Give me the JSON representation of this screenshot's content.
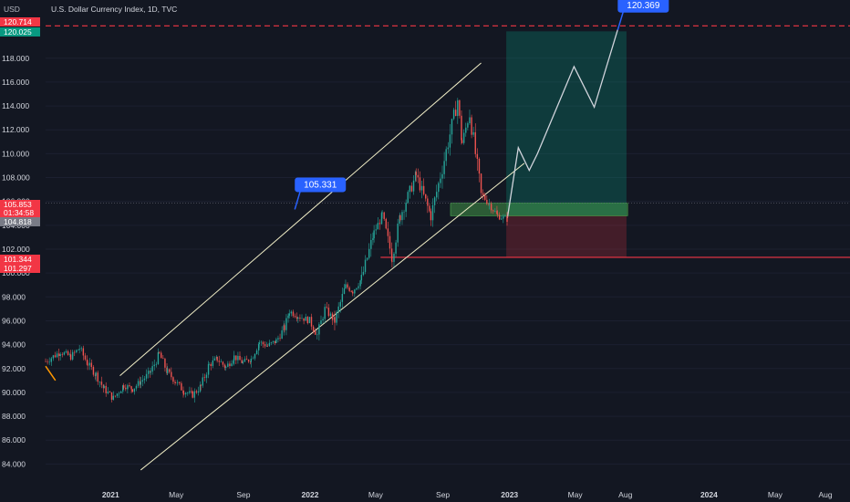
{
  "header": {
    "unit": "USD",
    "title": "U.S. Dollar Currency Index, 1D, TVC"
  },
  "chart_data": {
    "type": "candlestick",
    "x_axis": {
      "labels": [
        {
          "label": "2021",
          "date": "2021-01-01",
          "bold": true
        },
        {
          "label": "May",
          "date": "2021-05-01",
          "bold": false
        },
        {
          "label": "Sep",
          "date": "2021-09-01",
          "bold": false
        },
        {
          "label": "2022",
          "date": "2022-01-01",
          "bold": true
        },
        {
          "label": "May",
          "date": "2022-05-01",
          "bold": false
        },
        {
          "label": "Sep",
          "date": "2022-09-01",
          "bold": false
        },
        {
          "label": "2023",
          "date": "2023-01-01",
          "bold": true
        },
        {
          "label": "May",
          "date": "2023-05-01",
          "bold": false
        },
        {
          "label": "Aug",
          "date": "2023-08-01",
          "bold": false
        },
        {
          "label": "2024",
          "date": "2024-01-01",
          "bold": true
        },
        {
          "label": "May",
          "date": "2024-05-01",
          "bold": false
        },
        {
          "label": "Aug",
          "date": "2024-08-01",
          "bold": false
        }
      ]
    },
    "y_axis": {
      "ticks": [
        "84.000",
        "86.000",
        "88.000",
        "90.000",
        "92.000",
        "94.000",
        "96.000",
        "98.000",
        "100.000",
        "102.000",
        "104.000",
        "106.000",
        "108.000",
        "110.000",
        "112.000",
        "114.000",
        "116.000",
        "118.000"
      ],
      "tick_values": [
        84,
        86,
        88,
        90,
        92,
        94,
        96,
        98,
        100,
        102,
        104,
        106,
        108,
        110,
        112,
        114,
        116,
        118
      ],
      "ylim": [
        82.5,
        121.5
      ],
      "xlim": [
        "2020-09-04",
        "2024-09-15"
      ]
    },
    "price_labels": [
      {
        "text": "120.714",
        "value": 120.714,
        "color": "#f23645"
      },
      {
        "text": "120.025",
        "value": 120.025,
        "color": "#089981"
      },
      {
        "text": "105.853",
        "value": 105.853,
        "color": "#f23645"
      },
      {
        "text": "01:34:58",
        "value": 105.35,
        "color": "#f23645"
      },
      {
        "text": "104.818",
        "value": 104.818,
        "color": "#787b86"
      },
      {
        "text": "101.344",
        "value": 101.344,
        "color": "#f23645"
      },
      {
        "text": "101.297",
        "value": 101.297,
        "color": "#f23645"
      }
    ],
    "callouts": [
      {
        "text": "105.331",
        "date": "2021-12-04",
        "value": 105.331,
        "color": "#2962ff"
      },
      {
        "text": "120.369",
        "date": "2023-07-18",
        "value": 120.369,
        "color": "#2962ff"
      }
    ],
    "price_path": [
      [
        "2020-09-04",
        92.6
      ],
      [
        "2020-10-01",
        93.4
      ],
      [
        "2020-10-20",
        93.0
      ],
      [
        "2020-11-05",
        93.7
      ],
      [
        "2020-11-20",
        92.4
      ],
      [
        "2020-12-05",
        91.5
      ],
      [
        "2020-12-20",
        90.3
      ],
      [
        "2021-01-06",
        89.5
      ],
      [
        "2021-01-25",
        90.6
      ],
      [
        "2021-02-10",
        90.3
      ],
      [
        "2021-02-25",
        90.9
      ],
      [
        "2021-03-15",
        91.7
      ],
      [
        "2021-03-31",
        93.2
      ],
      [
        "2021-04-15",
        91.7
      ],
      [
        "2021-04-30",
        90.9
      ],
      [
        "2021-05-15",
        90.1
      ],
      [
        "2021-05-31",
        89.8
      ],
      [
        "2021-06-15",
        90.5
      ],
      [
        "2021-06-30",
        92.3
      ],
      [
        "2021-07-15",
        92.8
      ],
      [
        "2021-07-31",
        92.1
      ],
      [
        "2021-08-15",
        93.0
      ],
      [
        "2021-08-31",
        92.5
      ],
      [
        "2021-09-15",
        92.8
      ],
      [
        "2021-09-30",
        94.2
      ],
      [
        "2021-10-15",
        93.9
      ],
      [
        "2021-10-31",
        94.3
      ],
      [
        "2021-11-15",
        95.4
      ],
      [
        "2021-11-24",
        96.8
      ],
      [
        "2021-12-10",
        96.4
      ],
      [
        "2021-12-31",
        96.0
      ],
      [
        "2022-01-14",
        94.8
      ],
      [
        "2022-01-28",
        97.0
      ],
      [
        "2022-02-15",
        96.0
      ],
      [
        "2022-03-07",
        98.9
      ],
      [
        "2022-03-20",
        98.5
      ],
      [
        "2022-04-05",
        99.5
      ],
      [
        "2022-04-28",
        103.4
      ],
      [
        "2022-05-13",
        104.8
      ],
      [
        "2022-05-31",
        101.3
      ],
      [
        "2022-06-15",
        104.8
      ],
      [
        "2022-07-14",
        108.2
      ],
      [
        "2022-08-10",
        104.8
      ],
      [
        "2022-08-31",
        108.8
      ],
      [
        "2022-09-28",
        114.5
      ],
      [
        "2022-10-06",
        110.9
      ],
      [
        "2022-10-20",
        113.4
      ],
      [
        "2022-11-10",
        106.6
      ],
      [
        "2022-11-25",
        105.8
      ],
      [
        "2022-12-10",
        104.8
      ],
      [
        "2022-12-28",
        104.5
      ]
    ],
    "projection_path": [
      [
        "2022-12-28",
        104.6
      ],
      [
        "2023-01-17",
        110.5
      ],
      [
        "2023-02-06",
        108.6
      ],
      [
        "2023-02-21",
        110.0
      ],
      [
        "2023-04-29",
        117.3
      ],
      [
        "2023-06-05",
        113.9
      ],
      [
        "2023-07-18",
        120.4
      ]
    ],
    "channel": [
      {
        "from": [
          "2021-01-18",
          91.4
        ],
        "to": [
          "2022-11-10",
          117.6
        ]
      },
      {
        "from": [
          "2021-02-25",
          83.5
        ],
        "to": [
          "2023-01-28",
          109.2
        ]
      }
    ],
    "position_tool": {
      "from": "2022-12-26",
      "to": "2023-08-03",
      "entry": 104.82,
      "target": 120.25,
      "stop": 101.32
    },
    "entry_zone": {
      "from": "2022-09-15",
      "to": "2023-08-05",
      "bottom": 104.8,
      "top": 105.85
    },
    "support_line": {
      "from": "2022-05-10",
      "value": 101.32
    },
    "target_line": {
      "value": 120.714
    }
  }
}
